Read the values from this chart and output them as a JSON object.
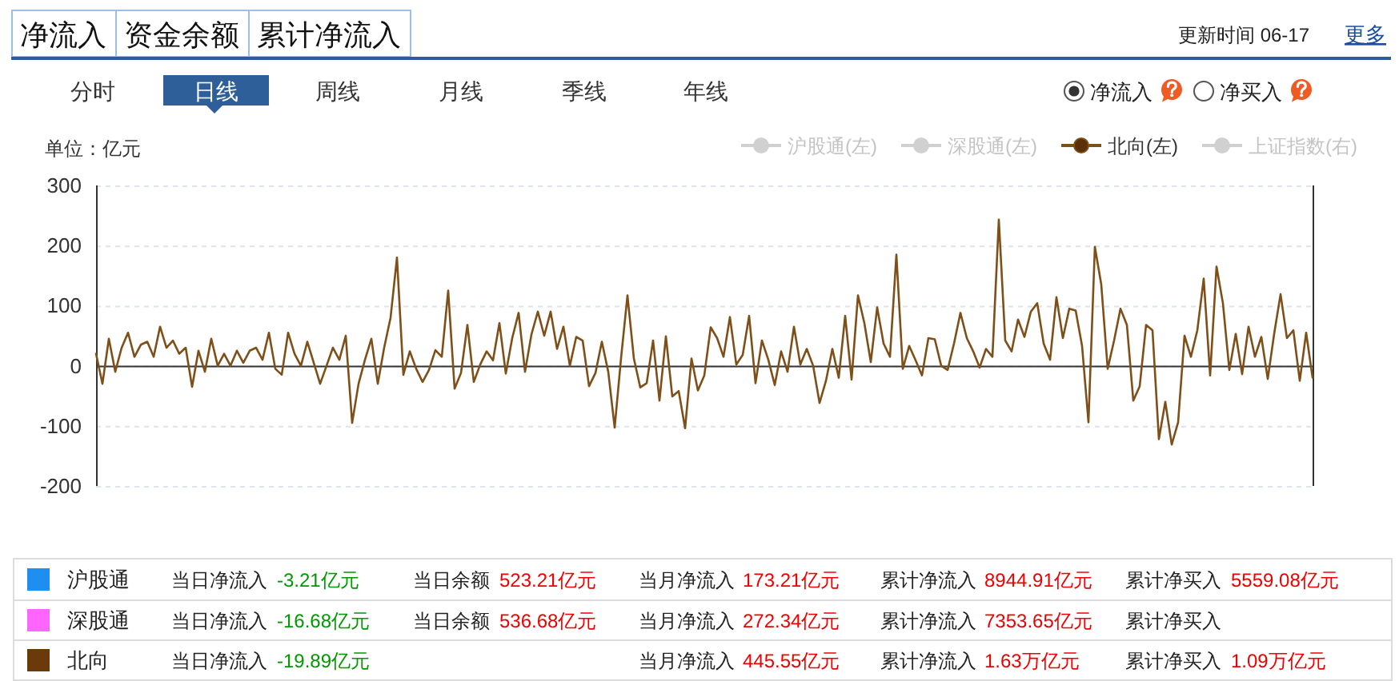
{
  "chart_data": {
    "type": "line",
    "ylabel": "单位：亿元",
    "categories": [
      null,
      null,
      null,
      null,
      null,
      null,
      null,
      null,
      null,
      null,
      null,
      null,
      null,
      null,
      null,
      null,
      null,
      null,
      null,
      null,
      null,
      null,
      null,
      null,
      null,
      null,
      null,
      null,
      null,
      null,
      null,
      null,
      null,
      null,
      null,
      null,
      null,
      null,
      null,
      null,
      null,
      null,
      null,
      null,
      null,
      null,
      null,
      null,
      null,
      null,
      null,
      null,
      null,
      null,
      null,
      null,
      null,
      null,
      null,
      null,
      null,
      null,
      null,
      null,
      null,
      null,
      null,
      null,
      null,
      null,
      null,
      null,
      null,
      null,
      null,
      null,
      null,
      null,
      null,
      null,
      null,
      null,
      null,
      null,
      null,
      null,
      null,
      null,
      null,
      null,
      null,
      null,
      null,
      null,
      null,
      null,
      null,
      null,
      null,
      null,
      null,
      null,
      null,
      null,
      null,
      null,
      null,
      null,
      null,
      null,
      null,
      null,
      null,
      null,
      null,
      null,
      null,
      null,
      null,
      null,
      null,
      null,
      null,
      null,
      null,
      null,
      null,
      null,
      null,
      null,
      null,
      null,
      null,
      null,
      null,
      null,
      null,
      null,
      null,
      null,
      null,
      null,
      null,
      null,
      null,
      null,
      null,
      null,
      null,
      null,
      null,
      null,
      null,
      null,
      null,
      null,
      null,
      null,
      null,
      null,
      null,
      null,
      null,
      null,
      null,
      null,
      null,
      null,
      null,
      null,
      null,
      null,
      null,
      null,
      null,
      null,
      null,
      null,
      null,
      null,
      null,
      null,
      null,
      null,
      null,
      null,
      null,
      null,
      null,
      null,
      null
    ],
    "series": [
      {
        "name": "北向(左)",
        "color": "#7f4f1a",
        "values": [
          20,
          -30,
          45,
          -10,
          30,
          55,
          15,
          35,
          40,
          15,
          65,
          30,
          42,
          20,
          30,
          -35,
          25,
          -10,
          45,
          0,
          20,
          0,
          25,
          5,
          25,
          30,
          10,
          55,
          -5,
          -15,
          55,
          20,
          0,
          40,
          5,
          -30,
          0,
          30,
          10,
          50,
          -95,
          -30,
          10,
          45,
          -30,
          30,
          80,
          180,
          -15,
          24,
          -5,
          -27,
          -7,
          26,
          15,
          125,
          -38,
          -12,
          68,
          -27,
          2,
          24,
          9,
          71,
          -13,
          46,
          88,
          -10,
          52,
          90,
          50,
          90,
          28,
          65,
          0,
          48,
          42,
          -34,
          -12,
          40,
          -10,
          -103,
          13,
          117,
          12,
          -36,
          -29,
          42,
          -58,
          49,
          -51,
          -42,
          -104,
          12,
          -41,
          -16,
          64,
          46,
          15,
          81,
          2,
          18,
          83,
          -29,
          42,
          10,
          -32,
          24,
          -10,
          65,
          2,
          28,
          0,
          -62,
          -25,
          28,
          -20,
          83,
          -23,
          117,
          71,
          6,
          97,
          37,
          15,
          185,
          -5,
          33,
          9,
          -16,
          46,
          44,
          0,
          -7,
          37,
          88,
          46,
          24,
          -3,
          28,
          15,
          243,
          42,
          24,
          77,
          48,
          90,
          104,
          37,
          10,
          114,
          46,
          95,
          92,
          33,
          -94,
          198,
          135,
          -5,
          42,
          95,
          68,
          -58,
          -34,
          68,
          59,
          -122,
          -60,
          -131,
          -94,
          50,
          15,
          59,
          145,
          -16,
          165,
          104,
          -7,
          53,
          -14,
          65,
          15,
          48,
          -22,
          53,
          119,
          46,
          59,
          -25,
          55,
          -20
        ]
      }
    ],
    "ylim": [
      -200,
      300
    ],
    "yticks": [
      -200,
      -100,
      0,
      100,
      200,
      300
    ],
    "grid": "y",
    "legend": "top right",
    "annotations": [
      "净流入",
      "资金余额",
      "累计净流入",
      "更新时间 06-17",
      "更多",
      "分时",
      "日线",
      "周线",
      "月线",
      "季线",
      "年线",
      "净流入",
      "净买入",
      "沪股通(左)",
      "深股通(左)",
      "上证指数(右)",
      "沪股通",
      "当日净流入",
      "-3.21亿元",
      "当日余额",
      "523.21亿元",
      "当月净流入",
      "173.21亿元",
      "累计净流入",
      "8944.91亿元",
      "累计净买入",
      "5559.08亿元",
      "深股通",
      "当日净流入",
      "-16.68亿元",
      "当日余额",
      "536.68亿元",
      "当月净流入",
      "272.34亿元",
      "累计净流入",
      "7353.65亿元",
      "累计净买入",
      "北向",
      "当日净流入",
      "-19.89亿元",
      "当月净流入",
      "445.55亿元",
      "累计净流入",
      "1.63万亿元",
      "累计净买入",
      "1.09万亿元"
    ]
  }
}
